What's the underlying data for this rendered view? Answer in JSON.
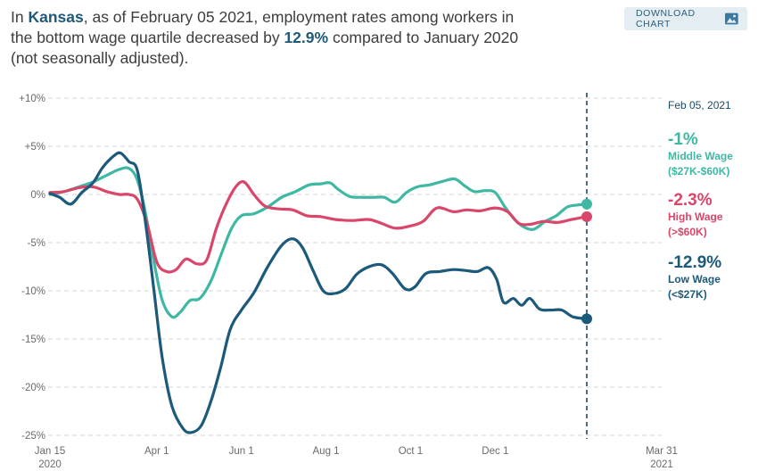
{
  "header": {
    "prefix": "In ",
    "state": "Kansas",
    "middle": ", as of February 05 2021, employment rates among workers in the bottom wage quartile decreased by ",
    "percent": "12.9%",
    "suffix": " compared to January 2020 (not seasonally adjusted)."
  },
  "download_button": {
    "label": "DOWNLOAD CHART",
    "icon": "image-icon"
  },
  "colors": {
    "middle": "#3fb8a3",
    "high": "#d9466a",
    "low": "#1b5a7a",
    "grid": "#d6d6d6"
  },
  "chart_data": {
    "type": "line",
    "y_tick_labels": [
      "+10%",
      "+5%",
      "0%",
      "-5%",
      "-10%",
      "-15%",
      "-20%",
      "-25%"
    ],
    "y_tick_values": [
      10,
      5,
      0,
      -5,
      -10,
      -15,
      -20,
      -25
    ],
    "ylim": [
      -25,
      10
    ],
    "x_ticks": [
      {
        "date": "2020-01-15",
        "label": "Jan 15",
        "sublabel": "2020"
      },
      {
        "date": "2020-04-01",
        "label": "Apr 1",
        "sublabel": ""
      },
      {
        "date": "2020-06-01",
        "label": "Jun 1",
        "sublabel": ""
      },
      {
        "date": "2020-08-01",
        "label": "Aug 1",
        "sublabel": ""
      },
      {
        "date": "2020-10-01",
        "label": "Oct 1",
        "sublabel": ""
      },
      {
        "date": "2020-12-01",
        "label": "Dec 1",
        "sublabel": ""
      },
      {
        "date": "2021-03-31",
        "label": "Mar 31",
        "sublabel": "2021"
      }
    ],
    "xlim": [
      "2020-01-15",
      "2021-03-31"
    ],
    "grid": true,
    "marker_date_label": "Feb 05, 2021",
    "marker_date": "2021-02-05",
    "series": [
      {
        "key": "middle",
        "value_label": "-1%",
        "name_line1": "Middle Wage",
        "name_line2": "($27K-$60K)",
        "points": [
          [
            "2020-01-15",
            0
          ],
          [
            "2020-01-25",
            0.3
          ],
          [
            "2020-02-05",
            0.8
          ],
          [
            "2020-02-15",
            1.3
          ],
          [
            "2020-02-25",
            2
          ],
          [
            "2020-03-05",
            2.6
          ],
          [
            "2020-03-12",
            2.7
          ],
          [
            "2020-03-18",
            1.5
          ],
          [
            "2020-03-24",
            -2
          ],
          [
            "2020-03-30",
            -7
          ],
          [
            "2020-04-05",
            -11
          ],
          [
            "2020-04-12",
            -12.7
          ],
          [
            "2020-04-18",
            -12.2
          ],
          [
            "2020-04-25",
            -11
          ],
          [
            "2020-05-02",
            -10.8
          ],
          [
            "2020-05-10",
            -9
          ],
          [
            "2020-05-18",
            -6
          ],
          [
            "2020-05-25",
            -3.5
          ],
          [
            "2020-06-01",
            -2.2
          ],
          [
            "2020-06-10",
            -2
          ],
          [
            "2020-06-20",
            -1.3
          ],
          [
            "2020-06-30",
            -0.3
          ],
          [
            "2020-07-10",
            0.3
          ],
          [
            "2020-07-20",
            1
          ],
          [
            "2020-07-28",
            1.1
          ],
          [
            "2020-08-04",
            1.2
          ],
          [
            "2020-08-10",
            0.5
          ],
          [
            "2020-08-18",
            -0.2
          ],
          [
            "2020-08-26",
            -0.3
          ],
          [
            "2020-09-05",
            -0.3
          ],
          [
            "2020-09-12",
            -0.3
          ],
          [
            "2020-09-20",
            -0.8
          ],
          [
            "2020-09-28",
            0.2
          ],
          [
            "2020-10-06",
            0.8
          ],
          [
            "2020-10-15",
            1
          ],
          [
            "2020-10-25",
            1.4
          ],
          [
            "2020-11-02",
            1.6
          ],
          [
            "2020-11-09",
            0.9
          ],
          [
            "2020-11-16",
            0.3
          ],
          [
            "2020-11-24",
            0.4
          ],
          [
            "2020-12-01",
            0.2
          ],
          [
            "2020-12-08",
            -1.3
          ],
          [
            "2020-12-15",
            -2.6
          ],
          [
            "2020-12-22",
            -3.4
          ],
          [
            "2020-12-29",
            -3.6
          ],
          [
            "2021-01-06",
            -2.8
          ],
          [
            "2021-01-14",
            -2.2
          ],
          [
            "2021-01-22",
            -1.3
          ],
          [
            "2021-01-29",
            -1.1
          ],
          [
            "2021-02-05",
            -1
          ]
        ]
      },
      {
        "key": "high",
        "value_label": "-2.3%",
        "name_line1": "High Wage",
        "name_line2": "(>$60K)",
        "points": [
          [
            "2020-01-15",
            0.2
          ],
          [
            "2020-01-25",
            0.3
          ],
          [
            "2020-02-05",
            0.7
          ],
          [
            "2020-02-15",
            0.8
          ],
          [
            "2020-02-25",
            0.3
          ],
          [
            "2020-03-05",
            0
          ],
          [
            "2020-03-12",
            0
          ],
          [
            "2020-03-18",
            -0.5
          ],
          [
            "2020-03-25",
            -3
          ],
          [
            "2020-04-01",
            -7
          ],
          [
            "2020-04-08",
            -8
          ],
          [
            "2020-04-15",
            -7.8
          ],
          [
            "2020-04-22",
            -6.7
          ],
          [
            "2020-04-30",
            -7.2
          ],
          [
            "2020-05-07",
            -6.8
          ],
          [
            "2020-05-14",
            -3.5
          ],
          [
            "2020-05-21",
            -1
          ],
          [
            "2020-05-28",
            0.8
          ],
          [
            "2020-06-03",
            1.3
          ],
          [
            "2020-06-10",
            0
          ],
          [
            "2020-06-18",
            -1.2
          ],
          [
            "2020-06-28",
            -1.5
          ],
          [
            "2020-07-08",
            -1.6
          ],
          [
            "2020-07-18",
            -2.2
          ],
          [
            "2020-07-28",
            -2.3
          ],
          [
            "2020-08-08",
            -2.6
          ],
          [
            "2020-08-20",
            -2.7
          ],
          [
            "2020-09-01",
            -2.6
          ],
          [
            "2020-09-10",
            -3
          ],
          [
            "2020-09-20",
            -3.5
          ],
          [
            "2020-09-30",
            -3.3
          ],
          [
            "2020-10-10",
            -2.8
          ],
          [
            "2020-10-20",
            -1.4
          ],
          [
            "2020-11-01",
            -1.8
          ],
          [
            "2020-11-10",
            -1.6
          ],
          [
            "2020-11-20",
            -1.7
          ],
          [
            "2020-12-01",
            -1.4
          ],
          [
            "2020-12-10",
            -1.8
          ],
          [
            "2020-12-18",
            -3
          ],
          [
            "2020-12-26",
            -3.1
          ],
          [
            "2021-01-05",
            -2.8
          ],
          [
            "2021-01-15",
            -2.9
          ],
          [
            "2021-01-25",
            -2.6
          ],
          [
            "2021-02-05",
            -2.3
          ]
        ]
      },
      {
        "key": "low",
        "value_label": "-12.9%",
        "name_line1": "Low Wage",
        "name_line2": "(<$27K)",
        "points": [
          [
            "2020-01-15",
            0.1
          ],
          [
            "2020-01-22",
            -0.3
          ],
          [
            "2020-01-30",
            -1
          ],
          [
            "2020-02-07",
            0.2
          ],
          [
            "2020-02-15",
            1.2
          ],
          [
            "2020-02-22",
            2.8
          ],
          [
            "2020-03-01",
            4
          ],
          [
            "2020-03-06",
            4.3
          ],
          [
            "2020-03-12",
            3.4
          ],
          [
            "2020-03-18",
            2.5
          ],
          [
            "2020-03-24",
            -3
          ],
          [
            "2020-03-30",
            -10
          ],
          [
            "2020-04-05",
            -17
          ],
          [
            "2020-04-12",
            -22
          ],
          [
            "2020-04-20",
            -24.3
          ],
          [
            "2020-04-26",
            -24.7
          ],
          [
            "2020-05-03",
            -24
          ],
          [
            "2020-05-10",
            -21.5
          ],
          [
            "2020-05-17",
            -18
          ],
          [
            "2020-05-24",
            -14
          ],
          [
            "2020-06-01",
            -12
          ],
          [
            "2020-06-10",
            -10.2
          ],
          [
            "2020-06-20",
            -7.5
          ],
          [
            "2020-06-30",
            -5.3
          ],
          [
            "2020-07-08",
            -4.6
          ],
          [
            "2020-07-15",
            -5.5
          ],
          [
            "2020-07-23",
            -8
          ],
          [
            "2020-07-30",
            -10
          ],
          [
            "2020-08-06",
            -10.3
          ],
          [
            "2020-08-15",
            -9.8
          ],
          [
            "2020-08-23",
            -8.3
          ],
          [
            "2020-09-01",
            -7.5
          ],
          [
            "2020-09-10",
            -7.3
          ],
          [
            "2020-09-18",
            -8.2
          ],
          [
            "2020-09-27",
            -9.8
          ],
          [
            "2020-10-04",
            -9.6
          ],
          [
            "2020-10-12",
            -8.2
          ],
          [
            "2020-10-22",
            -8
          ],
          [
            "2020-11-01",
            -7.8
          ],
          [
            "2020-11-10",
            -7.9
          ],
          [
            "2020-11-18",
            -8
          ],
          [
            "2020-11-26",
            -7.6
          ],
          [
            "2020-12-02",
            -8.8
          ],
          [
            "2020-12-07",
            -11.2
          ],
          [
            "2020-12-14",
            -10.8
          ],
          [
            "2020-12-20",
            -11.5
          ],
          [
            "2020-12-26",
            -10.8
          ],
          [
            "2021-01-02",
            -11.9
          ],
          [
            "2021-01-10",
            -12
          ],
          [
            "2021-01-18",
            -12
          ],
          [
            "2021-01-26",
            -12.7
          ],
          [
            "2021-02-05",
            -12.9
          ]
        ]
      }
    ]
  }
}
